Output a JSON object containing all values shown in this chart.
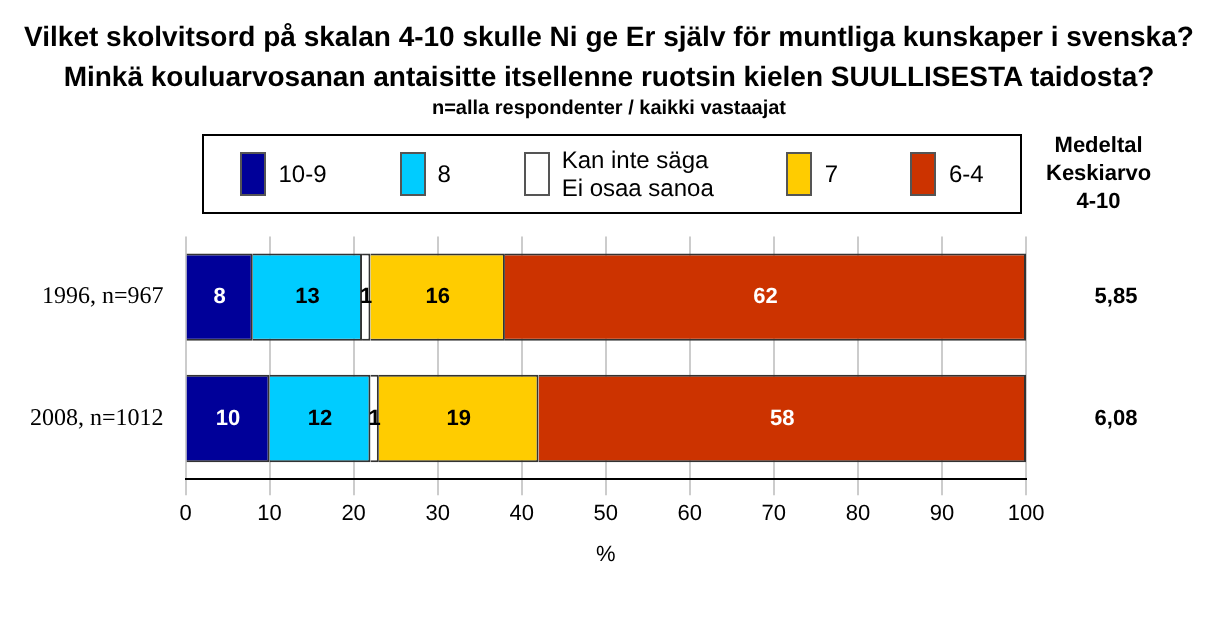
{
  "chart_data": {
    "type": "bar",
    "orientation": "horizontal",
    "stacked": true,
    "title": "Vilket skolvitsord på skalan 4-10 skulle Ni ge Er själv för muntliga kunskaper i svenska?\nMinkä kouluarvosanan antaisitte itsellenne ruotsin kielen SUULLISESTA taidosta?",
    "subtitle": "n=alla respondenter / kaikki vastaajat",
    "xlabel": "%",
    "categories": [
      "1996, n=967",
      "2008, n=1012"
    ],
    "series": [
      {
        "name": "10-9",
        "color": "#000099",
        "values": [
          8,
          10
        ]
      },
      {
        "name": "8",
        "color": "#00ccff",
        "values": [
          13,
          12
        ]
      },
      {
        "name": "Kan inte säga\nEi osaa sanoa",
        "color": "#ffffff",
        "values": [
          1,
          1
        ]
      },
      {
        "name": "7",
        "color": "#ffcc00",
        "values": [
          16,
          19
        ]
      },
      {
        "name": "6-4",
        "color": "#cc3300",
        "values": [
          62,
          58
        ]
      }
    ],
    "xlim": [
      0,
      100
    ],
    "xticks": [
      0,
      10,
      20,
      30,
      40,
      50,
      60,
      70,
      80,
      90,
      100
    ],
    "grid": "x",
    "legend": "top",
    "data_labels": true,
    "annotations": [
      "Medeltal\nKeskiarvo\n4-10",
      "5,85",
      "6,08"
    ]
  }
}
